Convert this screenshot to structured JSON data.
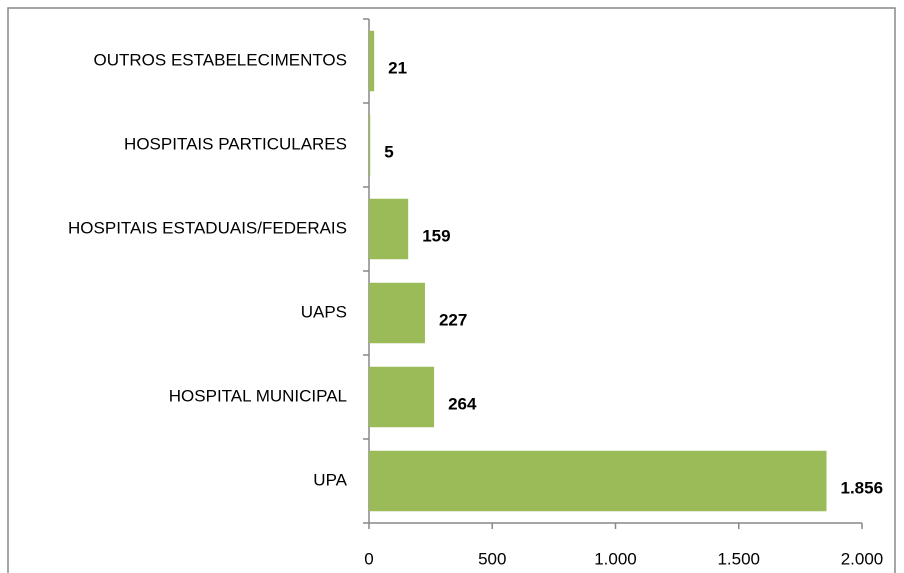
{
  "chart_data": {
    "type": "barh",
    "categories": [
      "OUTROS ESTABELECIMENTOS",
      "HOSPITAIS PARTICULARES",
      "HOSPITAIS ESTADUAIS/FEDERAIS",
      "UAPS",
      "HOSPITAL MUNICIPAL",
      "UPA"
    ],
    "values": [
      21,
      5,
      159,
      227,
      264,
      1856
    ],
    "value_labels": [
      "21",
      "5",
      "159",
      "227",
      "264",
      "1.856"
    ],
    "color": "#9bbb59",
    "xlim": [
      0,
      2000
    ],
    "xticks": [
      0,
      500,
      {
        "value": 1000,
        "label": "1.000"
      },
      {
        "value": 1500,
        "label": "1.500"
      },
      {
        "value": 2000,
        "label": "2.000"
      }
    ]
  }
}
